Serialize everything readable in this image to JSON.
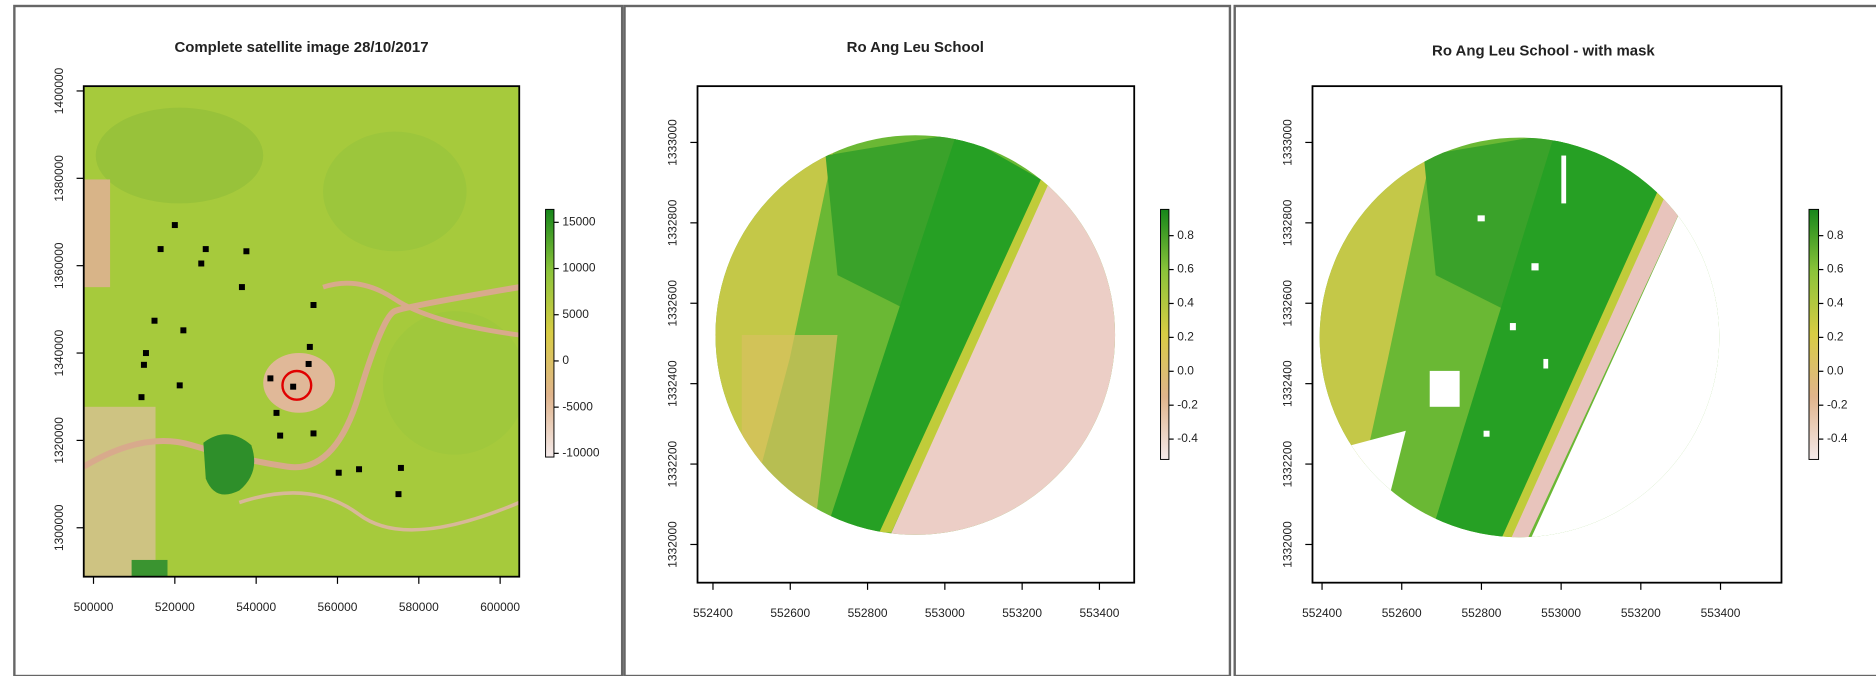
{
  "chart_data": [
    {
      "type": "raster",
      "title": "Complete satellite image 28/10/2017",
      "xlim": [
        497600,
        604700
      ],
      "xticks": [
        500000,
        520000,
        540000,
        560000,
        580000,
        600000
      ],
      "ylim": [
        1288800,
        1401100
      ],
      "yticks": [
        1300000,
        1320000,
        1340000,
        1360000,
        1380000,
        1400000
      ],
      "colorbar": {
        "lim": [
          -10400,
          16400
        ],
        "ticks": [
          15000,
          10000,
          5000,
          0,
          -5000,
          -10000
        ],
        "colors": [
          "#f4eaea",
          "#e0b48c",
          "#d8cc44",
          "#8cc43a",
          "#16861a"
        ]
      },
      "points": {
        "color": "#000000",
        "x": [
          520000,
          516500,
          527600,
          526500,
          537600,
          536500,
          554100,
          515000,
          522100,
          512900,
          512400,
          553200,
          552900,
          543500,
          521200,
          511800,
          549100,
          545000,
          545900,
          554100,
          560300,
          565300,
          575600,
          575000
        ],
        "y": [
          1369300,
          1363800,
          1363800,
          1360500,
          1363300,
          1355100,
          1351000,
          1347400,
          1345200,
          1340000,
          1337300,
          1341400,
          1337500,
          1334200,
          1332600,
          1329900,
          1332300,
          1326300,
          1321100,
          1321600,
          1312600,
          1313400,
          1313700,
          1307700
        ]
      },
      "highlight": {
        "x": 550000,
        "y": 1332600,
        "color": "#e00000"
      }
    },
    {
      "type": "raster",
      "title": "Ro Ang Leu School",
      "xlim": [
        552360,
        553490
      ],
      "xticks": [
        552400,
        552600,
        552800,
        553000,
        553200,
        553400
      ],
      "ylim": [
        1331905,
        1333140
      ],
      "yticks": [
        1332000,
        1332200,
        1332400,
        1332600,
        1332800,
        1333000
      ],
      "colorbar": {
        "lim": [
          -0.52,
          0.955
        ],
        "ticks": [
          0.8,
          0.6,
          0.4,
          0.2,
          {
            "value": 0,
            "label": "0.0"
          },
          -0.2,
          -0.4
        ],
        "colors": [
          "#f4eaea",
          "#e0b48c",
          "#d8cc44",
          "#8cc43a",
          "#16861a"
        ]
      }
    },
    {
      "type": "raster",
      "title": "Ro Ang Leu School - with mask",
      "xlim": [
        552376,
        553553
      ],
      "xticks": [
        552400,
        552600,
        552800,
        553000,
        553200,
        553400
      ],
      "ylim": [
        1331905,
        1333140
      ],
      "yticks": [
        1332000,
        1332200,
        1332400,
        1332600,
        1332800,
        1333000
      ],
      "colorbar": {
        "lim": [
          -0.52,
          0.955
        ],
        "ticks": [
          0.8,
          0.6,
          0.4,
          0.2,
          {
            "value": 0,
            "label": "0.0"
          },
          -0.2,
          -0.4
        ],
        "colors": [
          "#f4eaea",
          "#e0b48c",
          "#d8cc44",
          "#8cc43a",
          "#16861a"
        ]
      }
    }
  ]
}
